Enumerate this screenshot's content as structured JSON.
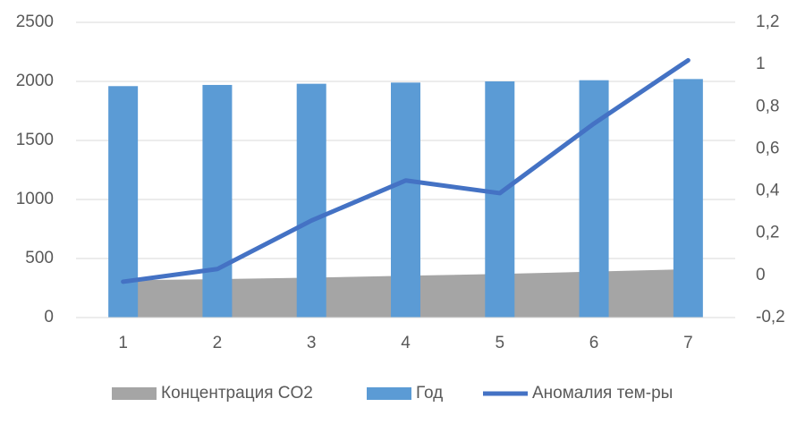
{
  "chart_data": {
    "type": "combo",
    "categories": [
      "1",
      "2",
      "3",
      "4",
      "5",
      "6",
      "7"
    ],
    "series": [
      {
        "name": "Концентрация CO2",
        "type": "area",
        "color": "#a5a5a5",
        "values": [
          316,
          325,
          338,
          354,
          369,
          389,
          409
        ]
      },
      {
        "name": "Год",
        "type": "bar",
        "color": "#5b9bd5",
        "values": [
          1960,
          1970,
          1980,
          1990,
          2000,
          2010,
          2020
        ]
      },
      {
        "name": "Аномалия тем-ры",
        "type": "line",
        "axis": "y2",
        "color": "#4472c4",
        "values": [
          -0.03,
          0.03,
          0.26,
          0.45,
          0.39,
          0.72,
          1.02
        ]
      }
    ],
    "ylim": [
      0,
      2500
    ],
    "yticks": [
      0,
      500,
      1000,
      1500,
      2000,
      2500
    ],
    "y2lim": [
      -0.2,
      1.2
    ],
    "y2ticks": [
      {
        "value": -0.2,
        "label": "-0,2"
      },
      0,
      {
        "value": 0.2,
        "label": "0,2"
      },
      {
        "value": 0.4,
        "label": "0,4"
      },
      {
        "value": 0.6,
        "label": "0,6"
      },
      {
        "value": 0.8,
        "label": "0,8"
      },
      1,
      {
        "value": 1.2,
        "label": "1,2"
      }
    ],
    "grid": true,
    "legend": "bottom"
  }
}
